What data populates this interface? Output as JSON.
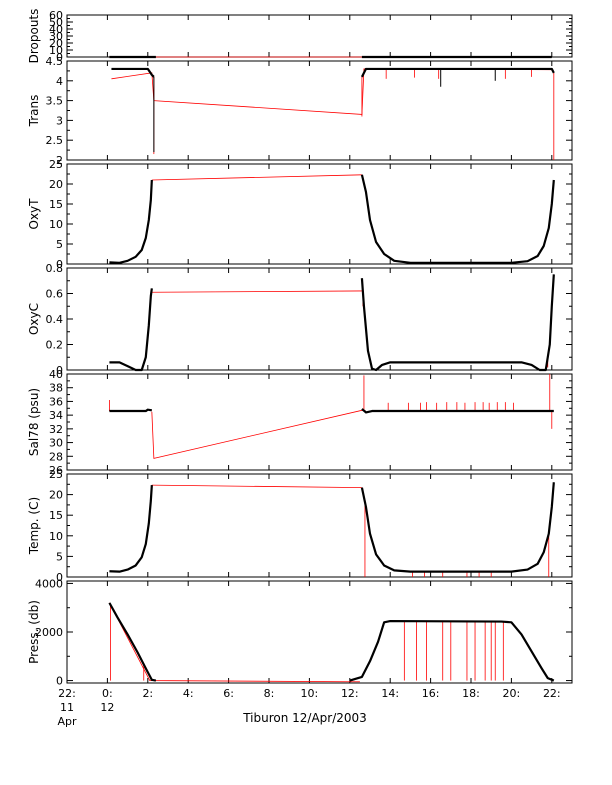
{
  "chart_data": {
    "type": "line",
    "caption": "Tiburon 12/Apr/2003",
    "x_axis": {
      "range_hours": [
        22,
        47
      ],
      "tick_labels": [
        {
          "hour": 22,
          "lines": [
            "22:",
            "11",
            "Apr"
          ]
        },
        {
          "hour": 24,
          "lines": [
            "0:",
            "12"
          ]
        },
        {
          "hour": 26,
          "lines": [
            "2:"
          ]
        },
        {
          "hour": 28,
          "lines": [
            "4:"
          ]
        },
        {
          "hour": 30,
          "lines": [
            "6:"
          ]
        },
        {
          "hour": 32,
          "lines": [
            "8:"
          ]
        },
        {
          "hour": 34,
          "lines": [
            "10:"
          ]
        },
        {
          "hour": 36,
          "lines": [
            "12:"
          ]
        },
        {
          "hour": 38,
          "lines": [
            "14:"
          ]
        },
        {
          "hour": 40,
          "lines": [
            "16:"
          ]
        },
        {
          "hour": 42,
          "lines": [
            "18:"
          ]
        },
        {
          "hour": 44,
          "lines": [
            "20:"
          ]
        },
        {
          "hour": 46,
          "lines": [
            "22:"
          ]
        }
      ]
    },
    "colors": {
      "data": "#000000",
      "raw": "#ff0000"
    },
    "panels": [
      {
        "id": "dropouts",
        "ylabel": "Dropouts",
        "ylim": [
          0,
          60
        ],
        "yticks": [
          0,
          10,
          20,
          30,
          40,
          50,
          60
        ],
        "red": [
          [
            24.1,
            0
          ],
          [
            24.2,
            -0.5
          ],
          [
            26.5,
            -0.5
          ],
          [
            36.5,
            -2.5
          ],
          [
            45.9,
            -0.5
          ]
        ],
        "black": [
          [
            [
              24.1,
              0
            ],
            [
              26.4,
              0
            ]
          ],
          [
            [
              36.6,
              0
            ],
            [
              46.0,
              0
            ]
          ]
        ],
        "spikes_red": [],
        "spikes_black": []
      },
      {
        "id": "trans",
        "ylabel": "Trans",
        "ylim": [
          2.0,
          4.5
        ],
        "yticks": [
          2.0,
          2.5,
          3.0,
          3.5,
          4.0,
          4.5
        ],
        "red": [
          [
            24.2,
            4.05
          ],
          [
            26.2,
            4.2
          ],
          [
            26.3,
            3.5
          ],
          [
            36.6,
            3.15
          ],
          [
            36.7,
            4.3
          ],
          [
            46.0,
            4.28
          ]
        ],
        "black": [
          [
            [
              24.2,
              4.3
            ],
            [
              26.0,
              4.3
            ],
            [
              26.2,
              4.15
            ],
            [
              26.3,
              4.1
            ]
          ],
          [
            [
              36.6,
              4.1
            ],
            [
              36.8,
              4.3
            ],
            [
              46.0,
              4.3
            ],
            [
              46.1,
              4.2
            ]
          ]
        ],
        "spikes_red": [
          [
            26.3,
            2.15
          ],
          [
            36.6,
            3.1
          ],
          [
            37.8,
            4.05
          ],
          [
            39.2,
            4.08
          ],
          [
            40.4,
            4.05
          ],
          [
            43.7,
            4.05
          ],
          [
            45.0,
            4.1
          ],
          [
            46.1,
            1.95
          ]
        ],
        "spikes_black": [
          [
            26.3,
            2.2
          ],
          [
            40.5,
            3.85
          ],
          [
            43.2,
            4.0
          ]
        ]
      },
      {
        "id": "oxyt",
        "ylabel": "OxyT",
        "ylim": [
          0,
          25
        ],
        "yticks": [
          0,
          5,
          10,
          15,
          20,
          25
        ],
        "red": [
          [
            26.2,
            21.0
          ],
          [
            36.6,
            22.3
          ]
        ],
        "black": [
          [
            [
              24.1,
              0.4
            ],
            [
              24.6,
              0.3
            ],
            [
              25.0,
              0.8
            ],
            [
              25.4,
              1.8
            ],
            [
              25.7,
              3.5
            ],
            [
              25.9,
              6.5
            ],
            [
              26.05,
              11.0
            ],
            [
              26.15,
              16.0
            ],
            [
              26.2,
              21.0
            ]
          ],
          [
            [
              36.6,
              22.3
            ],
            [
              36.8,
              18.0
            ],
            [
              37.0,
              11.0
            ],
            [
              37.3,
              5.5
            ],
            [
              37.7,
              2.5
            ],
            [
              38.2,
              0.8
            ],
            [
              39.0,
              0.3
            ],
            [
              44.0,
              0.3
            ],
            [
              44.8,
              0.7
            ],
            [
              45.3,
              2.0
            ],
            [
              45.6,
              4.5
            ],
            [
              45.85,
              9.0
            ],
            [
              46.0,
              15.0
            ],
            [
              46.1,
              21.0
            ]
          ]
        ],
        "spikes_red": [],
        "spikes_black": []
      },
      {
        "id": "oxyc",
        "ylabel": "OxyC",
        "ylim": [
          0,
          0.8
        ],
        "yticks": [
          0.0,
          0.2,
          0.4,
          0.6,
          0.8
        ],
        "red": [
          [
            26.2,
            0.61
          ],
          [
            36.6,
            0.62
          ]
        ],
        "black": [
          [
            [
              24.1,
              0.06
            ],
            [
              24.6,
              0.06
            ],
            [
              25.0,
              0.03
            ],
            [
              25.4,
              0.0
            ],
            [
              25.7,
              0.0
            ],
            [
              25.9,
              0.1
            ],
            [
              26.05,
              0.35
            ],
            [
              26.15,
              0.58
            ],
            [
              26.2,
              0.64
            ]
          ],
          [
            [
              36.6,
              0.72
            ],
            [
              36.7,
              0.5
            ],
            [
              36.9,
              0.15
            ],
            [
              37.1,
              0.01
            ],
            [
              37.3,
              0.0
            ],
            [
              37.6,
              0.04
            ],
            [
              38.0,
              0.06
            ],
            [
              44.5,
              0.06
            ],
            [
              45.0,
              0.04
            ],
            [
              45.4,
              0.0
            ],
            [
              45.7,
              0.0
            ],
            [
              45.9,
              0.2
            ],
            [
              46.0,
              0.5
            ],
            [
              46.1,
              0.75
            ]
          ]
        ],
        "spikes_red": [
          [
            26.1,
            0.45
          ],
          [
            36.65,
            0.5
          ],
          [
            45.8,
            0.02
          ]
        ],
        "spikes_black": []
      },
      {
        "id": "sal78",
        "ylabel": "Sal78 (psu)",
        "ylim": [
          26,
          40
        ],
        "yticks": [
          26,
          28,
          30,
          32,
          34,
          36,
          38,
          40
        ],
        "red": [
          [
            26.2,
            34.5
          ],
          [
            26.3,
            27.7
          ],
          [
            36.6,
            34.7
          ],
          [
            36.8,
            34.6
          ]
        ],
        "black": [
          [
            [
              24.1,
              34.6
            ],
            [
              25.9,
              34.6
            ],
            [
              26.0,
              34.8
            ],
            [
              26.2,
              34.7
            ]
          ],
          [
            [
              36.6,
              34.9
            ],
            [
              36.8,
              34.4
            ],
            [
              37.1,
              34.6
            ],
            [
              46.1,
              34.6
            ]
          ]
        ],
        "spikes_red": [
          [
            24.1,
            36.2
          ],
          [
            36.7,
            39.8
          ],
          [
            37.9,
            35.8
          ],
          [
            38.9,
            35.8
          ],
          [
            39.5,
            35.8
          ],
          [
            39.8,
            35.9
          ],
          [
            40.3,
            35.8
          ],
          [
            40.8,
            35.9
          ],
          [
            41.3,
            35.9
          ],
          [
            41.7,
            35.8
          ],
          [
            42.2,
            35.9
          ],
          [
            42.6,
            35.9
          ],
          [
            42.9,
            35.8
          ],
          [
            43.3,
            35.9
          ],
          [
            43.7,
            35.9
          ],
          [
            44.1,
            35.8
          ],
          [
            45.9,
            40.2
          ],
          [
            46.0,
            32.0
          ]
        ],
        "spikes_black": []
      },
      {
        "id": "temp",
        "ylabel": "Temp. (C)",
        "ylim": [
          0,
          25
        ],
        "yticks": [
          0,
          5,
          10,
          15,
          20,
          25
        ],
        "red": [
          [
            26.2,
            22.3
          ],
          [
            36.6,
            21.7
          ]
        ],
        "black": [
          [
            [
              24.1,
              1.4
            ],
            [
              24.6,
              1.3
            ],
            [
              25.0,
              1.8
            ],
            [
              25.4,
              2.8
            ],
            [
              25.7,
              4.8
            ],
            [
              25.9,
              8.0
            ],
            [
              26.05,
              13.0
            ],
            [
              26.15,
              18.5
            ],
            [
              26.2,
              22.3
            ]
          ],
          [
            [
              36.6,
              21.7
            ],
            [
              36.8,
              17.0
            ],
            [
              37.0,
              10.5
            ],
            [
              37.3,
              5.5
            ],
            [
              37.7,
              2.8
            ],
            [
              38.2,
              1.6
            ],
            [
              39.0,
              1.3
            ],
            [
              44.0,
              1.3
            ],
            [
              44.8,
              1.8
            ],
            [
              45.3,
              3.2
            ],
            [
              45.6,
              6.0
            ],
            [
              45.85,
              10.5
            ],
            [
              46.0,
              17.0
            ],
            [
              46.1,
              23.0
            ]
          ]
        ],
        "spikes_red": [
          [
            36.75,
            0.0
          ],
          [
            39.1,
            0.0
          ],
          [
            39.7,
            0.0
          ],
          [
            40.6,
            0.0
          ],
          [
            41.8,
            0.0
          ],
          [
            42.4,
            0.0
          ],
          [
            43.0,
            0.0
          ],
          [
            45.85,
            0.0
          ]
        ],
        "spikes_black": []
      },
      {
        "id": "press",
        "ylabel": "Press. (db)",
        "ylim": [
          -100,
          4100
        ],
        "yticks": [
          0,
          2000,
          4000
        ],
        "red": [
          [
            24.1,
            3200
          ],
          [
            26.1,
            0
          ],
          [
            36.0,
            -50
          ],
          [
            36.5,
            -50
          ]
        ],
        "black": [
          [
            [
              24.1,
              3200
            ],
            [
              24.5,
              2600
            ],
            [
              25.0,
              1900
            ],
            [
              25.5,
              1150
            ],
            [
              25.9,
              500
            ],
            [
              26.2,
              30
            ],
            [
              26.4,
              0
            ]
          ],
          [
            [
              36.0,
              0
            ],
            [
              36.6,
              150
            ],
            [
              37.0,
              800
            ],
            [
              37.4,
              1600
            ],
            [
              37.7,
              2400
            ],
            [
              38.0,
              2450
            ],
            [
              43.5,
              2430
            ],
            [
              44.0,
              2400
            ],
            [
              44.5,
              1900
            ],
            [
              45.0,
              1200
            ],
            [
              45.5,
              500
            ],
            [
              45.8,
              100
            ],
            [
              46.1,
              0
            ]
          ]
        ],
        "spikes_red": [
          [
            24.15,
            0
          ],
          [
            25.8,
            0
          ],
          [
            38.7,
            0
          ],
          [
            39.3,
            0
          ],
          [
            39.8,
            0
          ],
          [
            40.6,
            0
          ],
          [
            41.0,
            0
          ],
          [
            41.8,
            0
          ],
          [
            42.2,
            0
          ],
          [
            42.7,
            0
          ],
          [
            43.0,
            0
          ],
          [
            43.2,
            0
          ],
          [
            43.6,
            0
          ]
        ],
        "spikes_black": []
      }
    ]
  }
}
